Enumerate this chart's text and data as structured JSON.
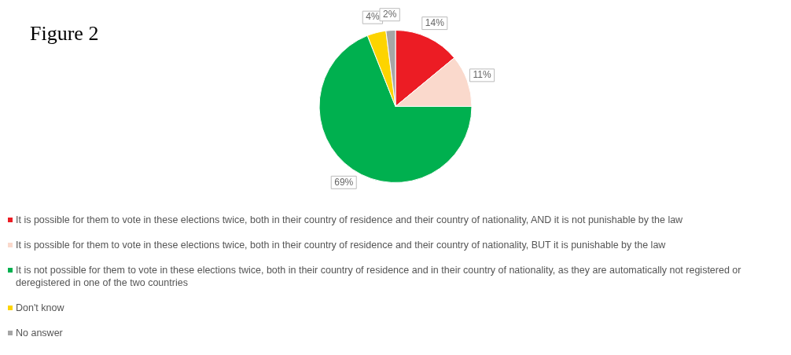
{
  "chart_data": {
    "type": "pie",
    "title": "Figure 2",
    "categories": [
      "It is possible for them to vote in these elections twice, both in their country of residence and their country of nationality, AND it is not punishable by the law",
      "It is possible for them to vote in these elections twice, both in their country of residence and their country of nationality, BUT it is punishable by the law",
      "It is not possible for them to vote in these elections twice, both in their country of residence and in their country of nationality, as they are automatically not registered or deregistered in one of the two countries",
      "Don't know",
      "No answer"
    ],
    "values": [
      14,
      11,
      69,
      4,
      2
    ],
    "colors": [
      "#ec1c24",
      "#fad9cc",
      "#00b04f",
      "#fdd400",
      "#a6a6a6"
    ],
    "value_labels": [
      "14%",
      "11%",
      "69%",
      "4%",
      "2%"
    ],
    "legend": "bottom"
  }
}
